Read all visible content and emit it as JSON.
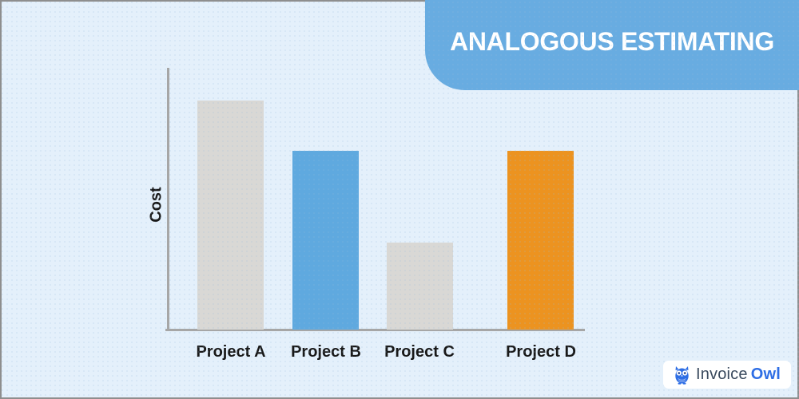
{
  "banner": {
    "title": "ANALOGOUS ESTIMATING",
    "background": "#68ACE1",
    "text_color": "#FFFFFF"
  },
  "chart_data": {
    "type": "bar",
    "title": "ANALOGOUS ESTIMATING",
    "categories": [
      "Project A",
      "Project B",
      "Project C",
      "Project D"
    ],
    "values": [
      100,
      78,
      38,
      78
    ],
    "bar_colors": [
      "#D9D8D5",
      "#5FA9DF",
      "#D9D8D5",
      "#EC9320"
    ],
    "xlabel": "",
    "ylabel": "Cost",
    "ylim": [
      0,
      100
    ],
    "grid": false,
    "legend_position": "none",
    "axis_color": "#A6A6A6",
    "label_color": "#191919"
  },
  "logo": {
    "brand_first": "Invoice",
    "brand_second": "Owl",
    "first_color": "#3A4A5E",
    "second_color": "#2E6EE5",
    "icon_color": "#2E6EE5",
    "background": "#FFFFFF"
  },
  "frame": {
    "background": "#E4F0FB",
    "border_color": "#8E8E8E"
  }
}
